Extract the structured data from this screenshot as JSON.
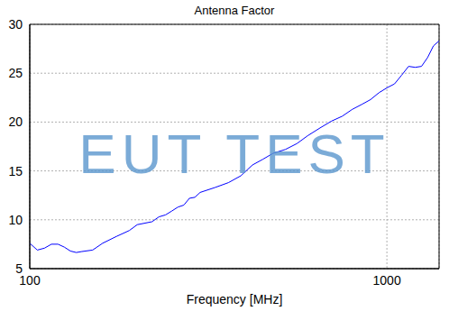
{
  "chart_data": {
    "type": "line",
    "title": "Antenna Factor",
    "x_label": "Frequency [MHz]",
    "annotations": [
      "EUT TEST"
    ],
    "log": "x",
    "grid": true,
    "color": "#0000ff",
    "xlim": [
      100,
      1400
    ],
    "xticks": [
      100,
      1000
    ],
    "ylim": [
      5,
      30
    ],
    "yticks": [
      5,
      10,
      15,
      20,
      25,
      30
    ],
    "x": [
      100,
      105,
      110,
      115,
      120,
      125,
      130,
      135,
      140,
      150,
      160,
      175,
      190,
      200,
      220,
      230,
      240,
      250,
      260,
      270,
      280,
      290,
      300,
      330,
      360,
      390,
      420,
      450,
      480,
      520,
      560,
      600,
      650,
      700,
      750,
      800,
      850,
      900,
      950,
      1000,
      1050,
      1100,
      1150,
      1200,
      1250,
      1300,
      1350,
      1400
    ],
    "values": [
      7.6,
      6.9,
      7.1,
      7.5,
      7.5,
      7.2,
      6.8,
      6.65,
      6.75,
      6.9,
      7.6,
      8.3,
      8.9,
      9.5,
      9.8,
      10.3,
      10.5,
      10.9,
      11.3,
      11.5,
      12.2,
      12.3,
      12.8,
      13.3,
      13.8,
      14.5,
      15.6,
      16.2,
      16.8,
      17.2,
      17.8,
      18.6,
      19.4,
      20.1,
      20.6,
      21.3,
      21.8,
      22.3,
      23.0,
      23.5,
      23.9,
      24.8,
      25.7,
      25.6,
      25.7,
      26.6,
      27.8,
      28.3
    ]
  }
}
